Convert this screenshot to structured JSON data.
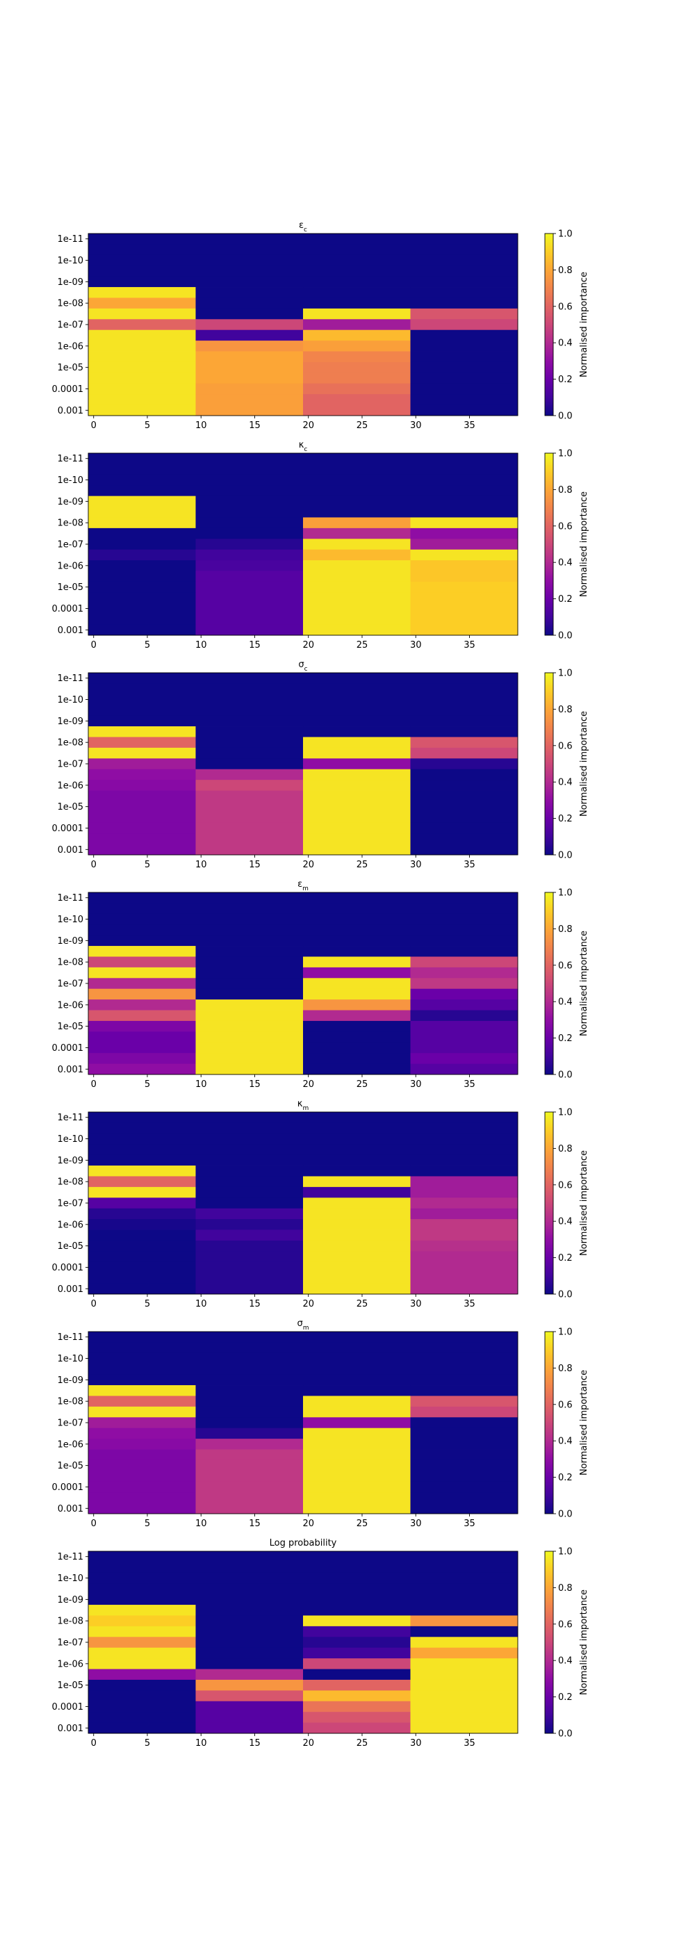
{
  "chart_data": [
    {
      "type": "heatmap",
      "title": "ε_c",
      "title_main": "ε",
      "title_sub": "c",
      "colormap": "plasma",
      "x_ticks": [
        0,
        5,
        10,
        15,
        20,
        25,
        30,
        35
      ],
      "x_range": [
        -0.5,
        39.5
      ],
      "y_labels": [
        "1e-11",
        "1e-10",
        "1e-09",
        "1e-08",
        "1e-07",
        "1e-06",
        "1e-05",
        "0.0001",
        "0.001"
      ],
      "n_rows": 17,
      "blocks": [
        [
          0.0,
          0.0,
          0.0,
          0.0,
          0.0,
          0.95,
          0.8,
          0.95,
          0.6,
          0.95,
          0.95,
          0.95,
          0.95,
          0.95,
          0.95,
          0.95,
          0.95
        ],
        [
          0.0,
          0.0,
          0.0,
          0.0,
          0.0,
          0.0,
          0.0,
          0.0,
          0.5,
          0.1,
          0.75,
          0.8,
          0.8,
          0.8,
          0.78,
          0.78,
          0.78
        ],
        [
          0.0,
          0.0,
          0.0,
          0.0,
          0.0,
          0.0,
          0.0,
          0.95,
          0.35,
          0.85,
          0.78,
          0.7,
          0.68,
          0.68,
          0.64,
          0.6,
          0.6
        ],
        [
          0.0,
          0.0,
          0.0,
          0.0,
          0.0,
          0.0,
          0.0,
          0.55,
          0.5,
          0.0,
          0.0,
          0.0,
          0.0,
          0.0,
          0.0,
          0.0,
          0.0
        ]
      ],
      "colorbar_label": "Normalised importance",
      "colorbar_ticks": [
        "0.0",
        "0.2",
        "0.4",
        "0.6",
        "0.8",
        "1.0"
      ]
    },
    {
      "type": "heatmap",
      "title": "κ_c",
      "title_main": "κ",
      "title_sub": "c",
      "colormap": "plasma",
      "x_ticks": [
        0,
        5,
        10,
        15,
        20,
        25,
        30,
        35
      ],
      "x_range": [
        -0.5,
        39.5
      ],
      "y_labels": [
        "1e-11",
        "1e-10",
        "1e-09",
        "1e-08",
        "1e-07",
        "1e-06",
        "1e-05",
        "0.0001",
        "0.001"
      ],
      "n_rows": 17,
      "blocks": [
        [
          0.0,
          0.0,
          0.0,
          0.0,
          0.95,
          0.95,
          0.95,
          0.0,
          0.0,
          0.05,
          0.0,
          0.0,
          0.0,
          0.0,
          0.0,
          0.0,
          0.0
        ],
        [
          0.0,
          0.0,
          0.0,
          0.0,
          0.0,
          0.0,
          0.0,
          0.0,
          0.05,
          0.1,
          0.12,
          0.15,
          0.15,
          0.15,
          0.15,
          0.15,
          0.15
        ],
        [
          0.0,
          0.0,
          0.0,
          0.0,
          0.0,
          0.0,
          0.78,
          0.4,
          0.95,
          0.85,
          0.95,
          0.95,
          0.95,
          0.95,
          0.95,
          0.95,
          0.95
        ],
        [
          0.0,
          0.0,
          0.0,
          0.0,
          0.0,
          0.0,
          0.95,
          0.3,
          0.35,
          0.95,
          0.88,
          0.88,
          0.9,
          0.9,
          0.9,
          0.9,
          0.9
        ]
      ],
      "colorbar_label": "Normalised importance",
      "colorbar_ticks": [
        "0.0",
        "0.2",
        "0.4",
        "0.6",
        "0.8",
        "1.0"
      ]
    },
    {
      "type": "heatmap",
      "title": "σ_c",
      "title_main": "σ",
      "title_sub": "c",
      "colormap": "plasma",
      "x_ticks": [
        0,
        5,
        10,
        15,
        20,
        25,
        30,
        35
      ],
      "x_range": [
        -0.5,
        39.5
      ],
      "y_labels": [
        "1e-11",
        "1e-10",
        "1e-09",
        "1e-08",
        "1e-07",
        "1e-06",
        "1e-05",
        "0.0001",
        "0.001"
      ],
      "n_rows": 17,
      "blocks": [
        [
          0.0,
          0.0,
          0.0,
          0.0,
          0.0,
          0.95,
          0.6,
          0.95,
          0.35,
          0.3,
          0.28,
          0.25,
          0.25,
          0.25,
          0.25,
          0.25,
          0.25
        ],
        [
          0.0,
          0.0,
          0.0,
          0.0,
          0.0,
          0.0,
          0.0,
          0.0,
          0.0,
          0.4,
          0.5,
          0.45,
          0.45,
          0.45,
          0.45,
          0.45,
          0.45
        ],
        [
          0.0,
          0.0,
          0.0,
          0.0,
          0.0,
          0.0,
          0.95,
          0.95,
          0.3,
          0.95,
          0.95,
          0.95,
          0.95,
          0.95,
          0.95,
          0.95,
          0.95
        ],
        [
          0.0,
          0.0,
          0.0,
          0.0,
          0.0,
          0.0,
          0.55,
          0.5,
          0.05,
          0.0,
          0.0,
          0.0,
          0.0,
          0.0,
          0.0,
          0.0,
          0.0
        ]
      ],
      "colorbar_label": "Normalised importance",
      "colorbar_ticks": [
        "0.0",
        "0.2",
        "0.4",
        "0.6",
        "0.8",
        "1.0"
      ]
    },
    {
      "type": "heatmap",
      "title": "ε_m",
      "title_main": "ε",
      "title_sub": "m",
      "colormap": "plasma",
      "x_ticks": [
        0,
        5,
        10,
        15,
        20,
        25,
        30,
        35
      ],
      "x_range": [
        -0.5,
        39.5
      ],
      "y_labels": [
        "1e-11",
        "1e-10",
        "1e-09",
        "1e-08",
        "1e-07",
        "1e-06",
        "1e-05",
        "0.0001",
        "0.001"
      ],
      "n_rows": 17,
      "blocks": [
        [
          0.0,
          0.0,
          0.0,
          0.0,
          0.0,
          0.95,
          0.5,
          0.95,
          0.4,
          0.75,
          0.4,
          0.55,
          0.25,
          0.2,
          0.2,
          0.25,
          0.3
        ],
        [
          0.0,
          0.0,
          0.0,
          0.0,
          0.0,
          0.0,
          0.0,
          0.0,
          0.0,
          0.0,
          0.95,
          0.95,
          0.95,
          0.95,
          0.95,
          0.95,
          0.95
        ],
        [
          0.0,
          0.0,
          0.0,
          0.0,
          0.0,
          0.0,
          0.95,
          0.3,
          0.95,
          0.95,
          0.75,
          0.4,
          0.0,
          0.0,
          0.0,
          0.0,
          0.0
        ],
        [
          0.0,
          0.0,
          0.0,
          0.0,
          0.0,
          0.0,
          0.5,
          0.4,
          0.45,
          0.2,
          0.15,
          0.05,
          0.15,
          0.15,
          0.15,
          0.2,
          0.15
        ]
      ],
      "colorbar_label": "Normalised importance",
      "colorbar_ticks": [
        "0.0",
        "0.2",
        "0.4",
        "0.6",
        "0.8",
        "1.0"
      ]
    },
    {
      "type": "heatmap",
      "title": "κ_m",
      "title_main": "κ",
      "title_sub": "m",
      "colormap": "plasma",
      "x_ticks": [
        0,
        5,
        10,
        15,
        20,
        25,
        30,
        35
      ],
      "x_range": [
        -0.5,
        39.5
      ],
      "y_labels": [
        "1e-11",
        "1e-10",
        "1e-09",
        "1e-08",
        "1e-07",
        "1e-06",
        "1e-05",
        "0.0001",
        "0.001"
      ],
      "n_rows": 17,
      "blocks": [
        [
          0.0,
          0.0,
          0.0,
          0.0,
          0.0,
          0.95,
          0.6,
          0.95,
          0.15,
          0.05,
          0.02,
          0.0,
          0.0,
          0.0,
          0.0,
          0.0,
          0.0
        ],
        [
          0.0,
          0.0,
          0.0,
          0.0,
          0.0,
          0.0,
          0.0,
          0.0,
          0.0,
          0.1,
          0.05,
          0.1,
          0.05,
          0.05,
          0.05,
          0.05,
          0.05
        ],
        [
          0.0,
          0.0,
          0.0,
          0.0,
          0.0,
          0.0,
          0.95,
          0.1,
          0.95,
          0.95,
          0.95,
          0.95,
          0.95,
          0.95,
          0.95,
          0.95,
          0.95
        ],
        [
          0.0,
          0.0,
          0.0,
          0.0,
          0.0,
          0.0,
          0.35,
          0.35,
          0.4,
          0.35,
          0.45,
          0.45,
          0.42,
          0.4,
          0.4,
          0.4,
          0.4
        ]
      ],
      "colorbar_label": "Normalised importance",
      "colorbar_ticks": [
        "0.0",
        "0.2",
        "0.4",
        "0.6",
        "0.8",
        "1.0"
      ]
    },
    {
      "type": "heatmap",
      "title": "σ_m",
      "title_main": "σ",
      "title_sub": "m",
      "colormap": "plasma",
      "x_ticks": [
        0,
        5,
        10,
        15,
        20,
        25,
        30,
        35
      ],
      "x_range": [
        -0.5,
        39.5
      ],
      "y_labels": [
        "1e-11",
        "1e-10",
        "1e-09",
        "1e-08",
        "1e-07",
        "1e-06",
        "1e-05",
        "0.0001",
        "0.001"
      ],
      "n_rows": 17,
      "blocks": [
        [
          0.0,
          0.0,
          0.0,
          0.0,
          0.0,
          0.95,
          0.6,
          0.95,
          0.35,
          0.3,
          0.28,
          0.25,
          0.25,
          0.25,
          0.25,
          0.25,
          0.25
        ],
        [
          0.0,
          0.0,
          0.0,
          0.0,
          0.0,
          0.0,
          0.0,
          0.0,
          0.0,
          0.05,
          0.4,
          0.45,
          0.45,
          0.45,
          0.45,
          0.45,
          0.45
        ],
        [
          0.0,
          0.0,
          0.0,
          0.0,
          0.0,
          0.0,
          0.95,
          0.95,
          0.3,
          0.95,
          0.95,
          0.95,
          0.95,
          0.95,
          0.95,
          0.95,
          0.95
        ],
        [
          0.0,
          0.0,
          0.0,
          0.0,
          0.0,
          0.0,
          0.55,
          0.5,
          0.0,
          0.0,
          0.0,
          0.0,
          0.0,
          0.0,
          0.0,
          0.0,
          0.0
        ]
      ],
      "colorbar_label": "Normalised importance",
      "colorbar_ticks": [
        "0.0",
        "0.2",
        "0.4",
        "0.6",
        "0.8",
        "1.0"
      ]
    },
    {
      "type": "heatmap",
      "title": "Log probability",
      "title_main": "Log probability",
      "title_sub": "",
      "colormap": "plasma",
      "x_ticks": [
        0,
        5,
        10,
        15,
        20,
        25,
        30,
        35
      ],
      "x_range": [
        -0.5,
        39.5
      ],
      "y_labels": [
        "1e-11",
        "1e-10",
        "1e-09",
        "1e-08",
        "1e-07",
        "1e-06",
        "1e-05",
        "0.0001",
        "0.001"
      ],
      "n_rows": 17,
      "blocks": [
        [
          0.0,
          0.0,
          0.0,
          0.0,
          0.0,
          0.95,
          0.9,
          0.95,
          0.75,
          0.95,
          0.95,
          0.3,
          0.0,
          0.0,
          0.0,
          0.0,
          0.0
        ],
        [
          0.0,
          0.0,
          0.0,
          0.0,
          0.0,
          0.0,
          0.0,
          0.0,
          0.0,
          0.0,
          0.0,
          0.4,
          0.75,
          0.55,
          0.15,
          0.15,
          0.15
        ],
        [
          0.0,
          0.0,
          0.0,
          0.0,
          0.0,
          0.0,
          0.95,
          0.1,
          0.05,
          0.1,
          0.5,
          0.0,
          0.6,
          0.85,
          0.65,
          0.55,
          0.5
        ],
        [
          0.0,
          0.0,
          0.0,
          0.0,
          0.0,
          0.0,
          0.75,
          0.0,
          0.95,
          0.8,
          0.95,
          0.95,
          0.95,
          0.95,
          0.95,
          0.95,
          0.95
        ]
      ],
      "colorbar_label": "Normalised importance",
      "colorbar_ticks": [
        "0.0",
        "0.2",
        "0.4",
        "0.6",
        "0.8",
        "1.0"
      ]
    }
  ]
}
